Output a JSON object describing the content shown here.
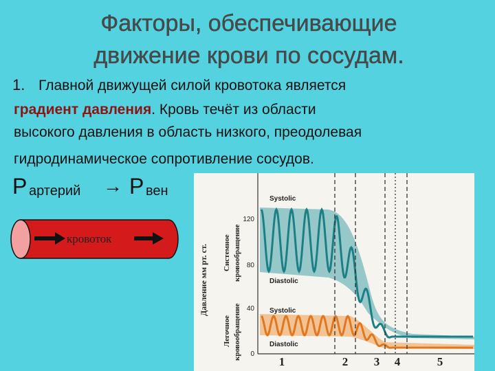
{
  "title": {
    "line1": "Факторы, обеспечивающие",
    "line2": "движение крови по  сосудам."
  },
  "paragraph": {
    "number": "1.",
    "line1": "Главной движущей силой кровотока является",
    "highlight": "градиент давления",
    "line2_rest": ". Кровь течёт из области",
    "line3": "высокого  давления в область низкого, преодолевая",
    "line4": "гидродинамическое сопротивление сосудов."
  },
  "formula": {
    "p1": "Р",
    "sub1": "артерий",
    "arrow": "→",
    "p2": "Р",
    "sub2": "вен"
  },
  "vessel": {
    "label": "кровоток"
  },
  "figure": {
    "y_axis_label": "Давление мм рт. ст.",
    "systemic_label": [
      "Системное",
      "кровообращение"
    ],
    "pulmonary_label": [
      "Легочное",
      "кровообращение"
    ],
    "yticks": [
      "120",
      "80",
      "40",
      "0"
    ],
    "systemic": {
      "systolic": "Systolic",
      "diastolic": "Diastolic"
    },
    "pulmonary": {
      "systolic": "Systolic",
      "diastolic": "Diastolic"
    },
    "segments": [
      "1",
      "2",
      "3",
      "4",
      "5"
    ]
  }
}
